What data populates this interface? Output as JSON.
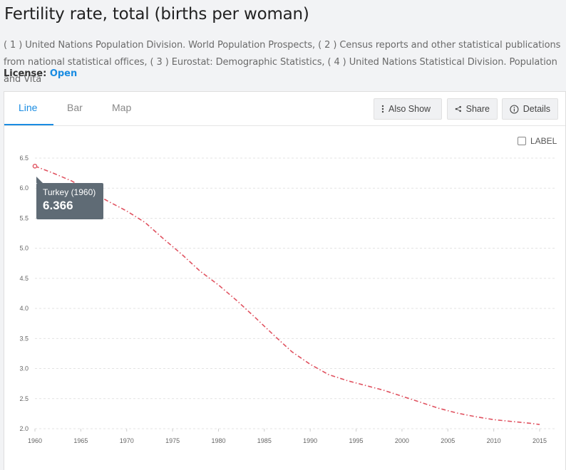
{
  "header": {
    "title": "Fertility rate, total (births per woman)",
    "source": "( 1 ) United Nations Population Division. World Population Prospects, ( 2 ) Census reports and other statistical publications from national statistical offices, ( 3 ) Eurostat: Demographic Statistics, ( 4 ) United Nations Statistical Division. Population and Vita",
    "license_label": "License:",
    "license_value": "Open"
  },
  "tabs": [
    {
      "label": "Line",
      "active": true
    },
    {
      "label": "Bar",
      "active": false
    },
    {
      "label": "Map",
      "active": false
    }
  ],
  "toolbar": {
    "also_show_label": "Also Show",
    "share_label": "Share",
    "details_label": "Details"
  },
  "label_toggle": {
    "label": "LABEL",
    "checked": false
  },
  "tooltip": {
    "title": "Turkey (1960)",
    "value": "6.366"
  },
  "colors": {
    "series": "#e05260",
    "accent": "#1a8ce2"
  },
  "chart_data": {
    "type": "line",
    "x": [
      1960,
      1962,
      1964,
      1966,
      1968,
      1970,
      1972,
      1974,
      1976,
      1978,
      1980,
      1982,
      1984,
      1986,
      1988,
      1990,
      1992,
      1994,
      1996,
      1998,
      2000,
      2002,
      2004,
      2006,
      2008,
      2010,
      2012,
      2014,
      2015
    ],
    "series": [
      {
        "name": "Turkey",
        "values": [
          6.366,
          6.25,
          6.12,
          5.95,
          5.78,
          5.62,
          5.43,
          5.16,
          4.9,
          4.62,
          4.39,
          4.13,
          3.85,
          3.56,
          3.28,
          3.07,
          2.9,
          2.8,
          2.72,
          2.64,
          2.54,
          2.44,
          2.34,
          2.26,
          2.2,
          2.15,
          2.12,
          2.09,
          2.07
        ]
      }
    ],
    "x_ticks": [
      1960,
      1965,
      1970,
      1975,
      1980,
      1985,
      1990,
      1995,
      2000,
      2005,
      2010,
      2015
    ],
    "y_ticks": [
      2.0,
      2.5,
      3.0,
      3.5,
      4.0,
      4.5,
      5.0,
      5.5,
      6.0,
      6.5
    ],
    "xlim": [
      1960,
      2015
    ],
    "ylim": [
      2.0,
      6.5
    ],
    "grid": true,
    "xlabel": "",
    "ylabel": "",
    "highlight_index": 0
  }
}
